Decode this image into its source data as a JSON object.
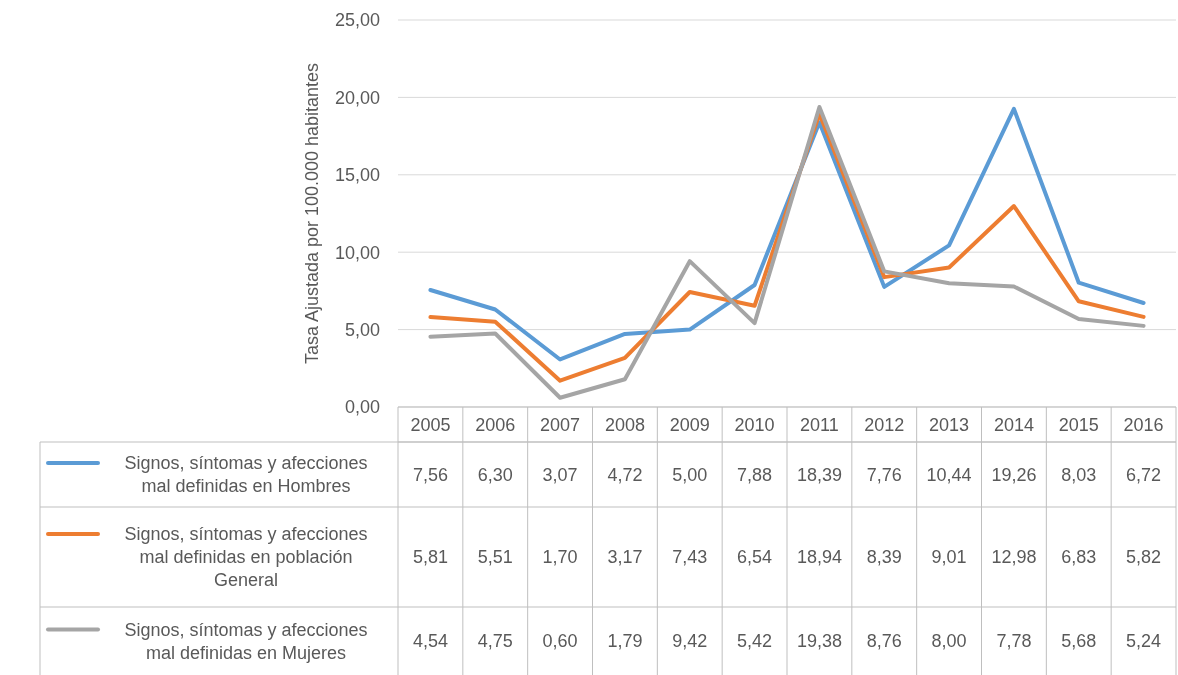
{
  "chart_data": {
    "type": "line",
    "ylabel": "Tasa Ajustada por 100.000 habitantes",
    "categories": [
      "2005",
      "2006",
      "2007",
      "2008",
      "2009",
      "2010",
      "2011",
      "2012",
      "2013",
      "2014",
      "2015",
      "2016"
    ],
    "series": [
      {
        "name": "Signos, síntomas y afecciones mal definidas en Hombres",
        "color": "#5b9bd5",
        "values": [
          7.56,
          6.3,
          3.07,
          4.72,
          5.0,
          7.88,
          18.39,
          7.76,
          10.44,
          19.26,
          8.03,
          6.72
        ],
        "value_labels": [
          "7,56",
          "6,30",
          "3,07",
          "4,72",
          "5,00",
          "7,88",
          "18,39",
          "7,76",
          "10,44",
          "19,26",
          "8,03",
          "6,72"
        ]
      },
      {
        "name": "Signos, síntomas y afecciones mal definidas en población General",
        "color": "#ed7d31",
        "values": [
          5.81,
          5.51,
          1.7,
          3.17,
          7.43,
          6.54,
          18.94,
          8.39,
          9.01,
          12.98,
          6.83,
          5.82
        ],
        "value_labels": [
          "5,81",
          "5,51",
          "1,70",
          "3,17",
          "7,43",
          "6,54",
          "18,94",
          "8,39",
          "9,01",
          "12,98",
          "6,83",
          "5,82"
        ]
      },
      {
        "name": "Signos, síntomas y afecciones mal definidas en Mujeres",
        "color": "#a5a5a5",
        "values": [
          4.54,
          4.75,
          0.6,
          1.79,
          9.42,
          5.42,
          19.38,
          8.76,
          8.0,
          7.78,
          5.68,
          5.24
        ],
        "value_labels": [
          "4,54",
          "4,75",
          "0,60",
          "1,79",
          "9,42",
          "5,42",
          "19,38",
          "8,76",
          "8,00",
          "7,78",
          "5,68",
          "5,24"
        ]
      }
    ],
    "ylim": [
      0,
      25
    ],
    "yticks": [
      {
        "value": 0,
        "label": "0,00"
      },
      {
        "value": 5,
        "label": "5,00"
      },
      {
        "value": 10,
        "label": "10,00"
      },
      {
        "value": 15,
        "label": "15,00"
      },
      {
        "value": 20,
        "label": "20,00"
      },
      {
        "value": 25,
        "label": "25,00"
      }
    ],
    "grid": "y",
    "legend": "bottom",
    "marker": "none",
    "line_style": "solid"
  }
}
